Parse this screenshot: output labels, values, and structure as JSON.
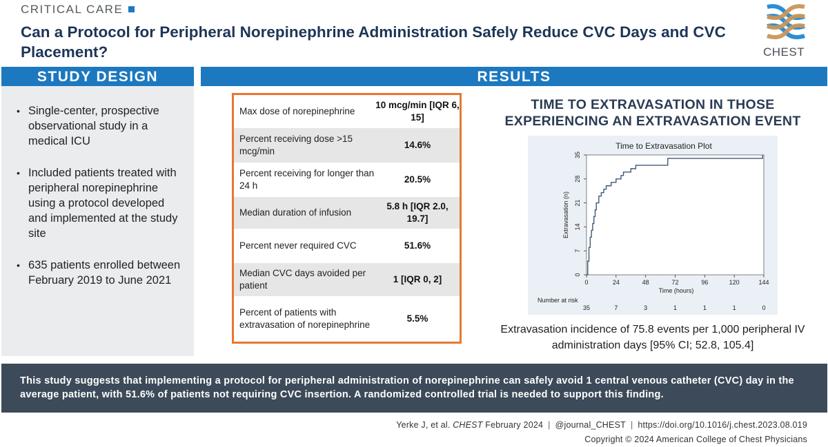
{
  "header": {
    "kicker": "CRITICAL CARE",
    "title": "Can a Protocol for Peripheral Norepinephrine Administration Safely Reduce CVC Days and CVC Placement?",
    "logo_text": "CHEST"
  },
  "sections": {
    "study_design": "STUDY DESIGN",
    "results": "RESULTS"
  },
  "study_design": {
    "bullets": [
      "Single-center, prospective observational study in a medical ICU",
      "Included patients treated with peripheral norepinephrine using a protocol developed and implemented at the study site",
      "635 patients enrolled between February 2019 to June 2021"
    ]
  },
  "results_table": {
    "rows": [
      {
        "label": "Max dose of norepinephrine",
        "value": "10 mcg/min [IQR 6, 15]"
      },
      {
        "label": "Percent receiving dose >15 mcg/min",
        "value": "14.6%"
      },
      {
        "label": "Percent receiving for longer than 24 h",
        "value": "20.5%"
      },
      {
        "label": "Median duration of infusion",
        "value": "5.8 h [IQR 2.0, 19.7]"
      },
      {
        "label": "Percent never required CVC",
        "value": "51.6%"
      },
      {
        "label": "Median CVC days avoided per patient",
        "value": "1 [IQR 0, 2]"
      },
      {
        "label": "Percent of patients with extravasation of norepinephrine",
        "value": "5.5%"
      }
    ]
  },
  "plot": {
    "heading": "TIME TO EXTRAVASATION IN THOSE EXPERIENCING AN EXTRAVASATION EVENT",
    "caption": "Extravasation incidence of 75.8 events per 1,000 peripheral IV administration days [95% CI; 52.8, 105.4]"
  },
  "chart_data": {
    "type": "line",
    "title": "Time to Extravasation Plot",
    "xlabel": "Time (hours)",
    "ylabel": "Extravasation (n)",
    "xlim": [
      0,
      144
    ],
    "ylim": [
      0,
      35
    ],
    "xticks": [
      0,
      24,
      48,
      72,
      96,
      120,
      144
    ],
    "yticks": [
      0,
      7,
      14,
      21,
      28,
      35
    ],
    "risk_label": "Number at risk",
    "risk_values": [
      35,
      7,
      3,
      1,
      1,
      1,
      0
    ],
    "series": [
      {
        "color": "#3d5a78",
        "x": [
          0,
          1,
          2,
          3,
          4,
          5,
          6,
          7,
          8,
          9,
          10,
          12,
          14,
          16,
          18,
          20,
          24,
          28,
          30,
          36,
          40,
          48,
          66,
          143
        ],
        "y": [
          0,
          4,
          8,
          11,
          13,
          15,
          17,
          19,
          21,
          21,
          23,
          24,
          25,
          26,
          26,
          27,
          28,
          29,
          30,
          31,
          32,
          32,
          34,
          35
        ]
      }
    ]
  },
  "summary": "This study suggests that implementing a protocol for peripheral administration of norepinephrine can safely avoid 1 central venous catheter (CVC) day in the average patient, with 51.6% of patients not requiring CVC insertion. A randomized controlled trial is needed to support this finding.",
  "footer": {
    "author": "Yerke J, et al.",
    "journal": "CHEST",
    "issue": "February 2024",
    "handle": "@journal_CHEST",
    "doi": "https://doi.org/10.1016/j.chest.2023.08.019",
    "copyright": "Copyright © 2024 American College of Chest Physicians"
  },
  "colors": {
    "banner": "#1c78bf",
    "title": "#1d3557",
    "table_border": "#e8772e",
    "summary_bg": "#3c4a59",
    "logo_blue": "#2a8fd4",
    "logo_tan": "#c9965b"
  }
}
